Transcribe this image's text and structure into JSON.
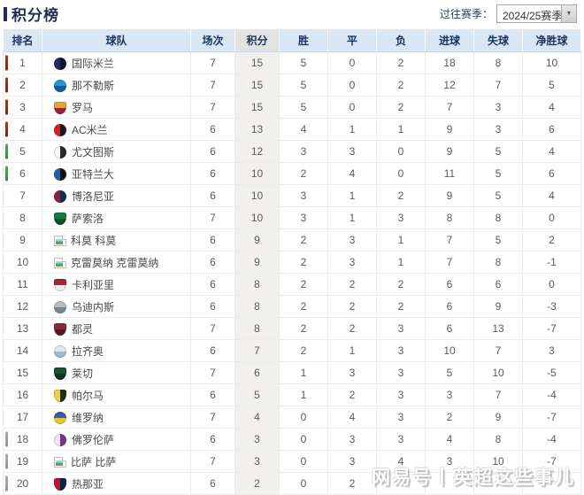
{
  "header": {
    "title": "积分榜",
    "season_label": "过往赛季：",
    "season_value": "2024/25赛季"
  },
  "watermark_text": "网易号丨英超这些事儿",
  "colors": {
    "accent_navy": "#1e3055",
    "header_bg": "#d9e7f4",
    "points_col_bg": "#f2f0ed",
    "zone_champions": "#8a3a22",
    "zone_europa": "#4c9a50",
    "zone_relegation": "#9da2a6"
  },
  "table": {
    "columns": [
      "排名",
      "球队",
      "场次",
      "积分",
      "胜",
      "平",
      "负",
      "进球",
      "失球",
      "净胜球"
    ],
    "rows": [
      {
        "rank": "1",
        "team": "国际米兰",
        "zone": "cl",
        "badge": {
          "shape": "circle",
          "dir": "90deg",
          "c1": "#1e2c5e",
          "c2": "#0d1533"
        },
        "cells": [
          "7",
          "15",
          "5",
          "0",
          "2",
          "18",
          "8",
          "10"
        ]
      },
      {
        "rank": "2",
        "team": "那不勒斯",
        "zone": "cl",
        "badge": {
          "shape": "circle",
          "dir": "180deg",
          "c1": "#2f8fd6",
          "c2": "#155a9e"
        },
        "cells": [
          "7",
          "15",
          "5",
          "0",
          "2",
          "12",
          "7",
          "5"
        ]
      },
      {
        "rank": "3",
        "team": "罗马",
        "zone": "cl",
        "badge": {
          "shape": "shield",
          "dir": "180deg",
          "c1": "#e8a33d",
          "c2": "#97233f"
        },
        "cells": [
          "7",
          "15",
          "5",
          "0",
          "2",
          "7",
          "3",
          "4"
        ]
      },
      {
        "rank": "4",
        "team": "AC米兰",
        "zone": "cl",
        "badge": {
          "shape": "circle",
          "dir": "90deg",
          "c1": "#e01a22",
          "c2": "#1a1a1a"
        },
        "cells": [
          "6",
          "13",
          "4",
          "1",
          "1",
          "9",
          "3",
          "6"
        ]
      },
      {
        "rank": "5",
        "team": "尤文图斯",
        "zone": "el",
        "badge": {
          "shape": "circle",
          "dir": "90deg",
          "c1": "#f5f5f5",
          "c2": "#2a2a2a"
        },
        "cells": [
          "6",
          "12",
          "3",
          "3",
          "0",
          "9",
          "5",
          "4"
        ]
      },
      {
        "rank": "6",
        "team": "亚特兰大",
        "zone": "el",
        "badge": {
          "shape": "circle",
          "dir": "90deg",
          "c1": "#1d64b0",
          "c2": "#131313"
        },
        "cells": [
          "6",
          "10",
          "2",
          "4",
          "0",
          "11",
          "5",
          "6"
        ]
      },
      {
        "rank": "7",
        "team": "博洛尼亚",
        "zone": "none",
        "badge": {
          "shape": "circle",
          "dir": "90deg",
          "c1": "#8f1f3f",
          "c2": "#1a2a52"
        },
        "cells": [
          "6",
          "10",
          "3",
          "1",
          "2",
          "9",
          "5",
          "4"
        ]
      },
      {
        "rank": "8",
        "team": "萨索洛",
        "zone": "none",
        "badge": {
          "shape": "shield",
          "dir": "180deg",
          "c1": "#127a3e",
          "c2": "#0b5129"
        },
        "cells": [
          "7",
          "10",
          "3",
          "1",
          "3",
          "8",
          "8",
          "0"
        ]
      },
      {
        "rank": "9",
        "team": "科莫 科莫",
        "zone": "none",
        "badge": {
          "shape": "broken"
        },
        "cells": [
          "6",
          "9",
          "2",
          "3",
          "1",
          "7",
          "5",
          "2"
        ]
      },
      {
        "rank": "10",
        "team": "克雷莫纳 克雷莫纳",
        "zone": "none",
        "badge": {
          "shape": "broken"
        },
        "cells": [
          "6",
          "9",
          "2",
          "3",
          "1",
          "7",
          "8",
          "-1"
        ]
      },
      {
        "rank": "11",
        "team": "卡利亚里",
        "zone": "none",
        "badge": {
          "shape": "shield",
          "dir": "180deg",
          "c1": "#a62639",
          "c2": "#eeeeee"
        },
        "cells": [
          "6",
          "8",
          "2",
          "2",
          "2",
          "6",
          "6",
          "0"
        ]
      },
      {
        "rank": "12",
        "team": "乌迪内斯",
        "zone": "none",
        "badge": {
          "shape": "circle",
          "dir": "180deg",
          "c1": "#b9bdc1",
          "c2": "#7d848a"
        },
        "cells": [
          "6",
          "8",
          "2",
          "2",
          "2",
          "6",
          "9",
          "-3"
        ]
      },
      {
        "rank": "13",
        "team": "都灵",
        "zone": "none",
        "badge": {
          "shape": "shield",
          "dir": "180deg",
          "c1": "#8a2a38",
          "c2": "#5a1622"
        },
        "cells": [
          "7",
          "8",
          "2",
          "2",
          "3",
          "6",
          "13",
          "-7"
        ]
      },
      {
        "rank": "14",
        "team": "拉齐奥",
        "zone": "none",
        "badge": {
          "shape": "circle",
          "dir": "180deg",
          "c1": "#d8e9f4",
          "c2": "#9fb8cc"
        },
        "cells": [
          "6",
          "7",
          "2",
          "1",
          "3",
          "10",
          "7",
          "3"
        ]
      },
      {
        "rank": "15",
        "team": "莱切",
        "zone": "none",
        "badge": {
          "shape": "shield",
          "dir": "180deg",
          "c1": "#1e4f30",
          "c2": "#0f3520"
        },
        "cells": [
          "7",
          "6",
          "1",
          "3",
          "3",
          "5",
          "10",
          "-5"
        ]
      },
      {
        "rank": "16",
        "team": "帕尔马",
        "zone": "none",
        "badge": {
          "shape": "shield",
          "dir": "90deg",
          "c1": "#e8d23e",
          "c2": "#2a2a1a"
        },
        "cells": [
          "6",
          "5",
          "1",
          "2",
          "3",
          "3",
          "7",
          "-4"
        ]
      },
      {
        "rank": "17",
        "team": "维罗纳",
        "zone": "none",
        "badge": {
          "shape": "circle",
          "dir": "180deg",
          "c1": "#3b5aa0",
          "c2": "#e0c83c"
        },
        "cells": [
          "7",
          "4",
          "0",
          "4",
          "3",
          "2",
          "9",
          "-7"
        ]
      },
      {
        "rank": "18",
        "team": "佛罗伦萨",
        "zone": "rel",
        "badge": {
          "shape": "circle",
          "dir": "90deg",
          "c1": "#efe6f2",
          "c2": "#7a2f8f"
        },
        "cells": [
          "6",
          "3",
          "0",
          "3",
          "3",
          "4",
          "8",
          "-4"
        ]
      },
      {
        "rank": "19",
        "team": "比萨 比萨",
        "zone": "rel",
        "badge": {
          "shape": "broken"
        },
        "cells": [
          "7",
          "3",
          "0",
          "3",
          "4",
          "3",
          "10",
          "-7"
        ]
      },
      {
        "rank": "20",
        "team": "热那亚",
        "zone": "rel",
        "badge": {
          "shape": "shield",
          "dir": "90deg",
          "c1": "#c8102e",
          "c2": "#0a2342"
        },
        "cells": [
          "6",
          "2",
          "0",
          "2",
          "",
          "",
          "",
          ""
        ]
      }
    ]
  }
}
